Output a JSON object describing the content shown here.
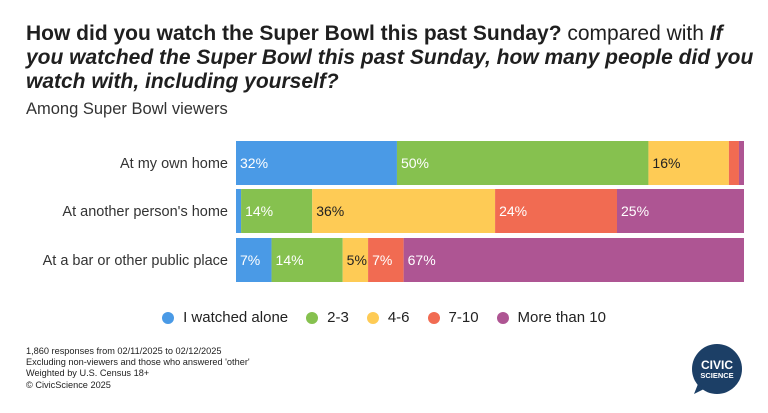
{
  "title": {
    "part1": "How did you watch the Super Bowl this past Sunday?",
    "part2": " compared with ",
    "part3": "If you watched the Super Bowl this past Sunday, how many people did you watch with, including yourself?"
  },
  "subtitle": "Among Super Bowl viewers",
  "colors": {
    "I watched alone": "#4a9ae6",
    "2-3": "#86c14f",
    "4-6": "#fecb55",
    "7-10": "#f16b52",
    "More than 10": "#ae5593"
  },
  "chart_data": {
    "type": "bar",
    "orientation": "horizontal",
    "stacked": true,
    "xlim": [
      0,
      100
    ],
    "categories": [
      "At my own home",
      "At another person's home",
      "At a bar or other public place"
    ],
    "series": [
      {
        "name": "I watched alone",
        "values": [
          32,
          1,
          7
        ],
        "labels": [
          "32%",
          "",
          "7%"
        ]
      },
      {
        "name": "2-3",
        "values": [
          50,
          14,
          14
        ],
        "labels": [
          "50%",
          "14%",
          "14%"
        ]
      },
      {
        "name": "4-6",
        "values": [
          16,
          36,
          5
        ],
        "labels": [
          "16%",
          "36%",
          "5%"
        ]
      },
      {
        "name": "7-10",
        "values": [
          2,
          24,
          7
        ],
        "labels": [
          "",
          "24%",
          "7%"
        ]
      },
      {
        "name": "More than 10",
        "values": [
          1,
          25,
          67
        ],
        "labels": [
          "",
          "25%",
          "67%"
        ]
      }
    ],
    "legend": [
      "I watched alone",
      "2-3",
      "4-6",
      "7-10",
      "More than 10"
    ]
  },
  "notes": [
    "1,860 responses from 02/11/2025 to 02/12/2025",
    "Excluding non-viewers and those who answered 'other'",
    "Weighted by U.S. Census 18+",
    "© CivicScience 2025"
  ],
  "logo": {
    "line1": "CIVIC",
    "line2": "SCIENCE"
  }
}
